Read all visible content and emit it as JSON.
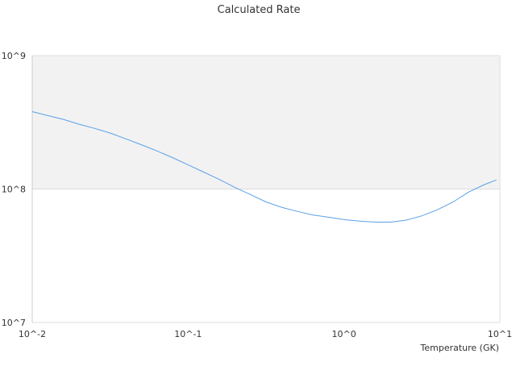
{
  "chart_data": {
    "type": "line",
    "title": "Calculated Rate",
    "xlabel": "Temperature (GK)",
    "ylabel": "",
    "x_scale": "log",
    "y_scale": "log",
    "xlim": [
      0.01,
      10
    ],
    "ylim": [
      10000000,
      1000000000
    ],
    "grid": true,
    "x_ticks": [
      {
        "value": 0.01,
        "label": "10^-2"
      },
      {
        "value": 0.1,
        "label": "10^-1"
      },
      {
        "value": 1,
        "label": "10^0"
      },
      {
        "value": 10,
        "label": "10^1"
      }
    ],
    "y_ticks": [
      {
        "value": 10000000,
        "label": "10^7"
      },
      {
        "value": 100000000,
        "label": "10^8"
      },
      {
        "value": 1000000000,
        "label": "10^9"
      }
    ],
    "shaded_band": {
      "y_from": 100000000,
      "y_to": 1000000000,
      "color": "#f2f2f2"
    },
    "series": [
      {
        "color": "#5aa0e6",
        "x": [
          0.01,
          0.0126,
          0.0158,
          0.02,
          0.0251,
          0.0316,
          0.0398,
          0.0501,
          0.0631,
          0.0794,
          0.1,
          0.1259,
          0.1585,
          0.1995,
          0.2512,
          0.3162,
          0.3981,
          0.5012,
          0.631,
          0.7943,
          1.0,
          1.259,
          1.585,
          1.995,
          2.512,
          3.162,
          3.981,
          5.012,
          6.31,
          7.943,
          9.5
        ],
        "y": [
          380000000,
          355000000,
          333000000,
          306000000,
          285000000,
          263000000,
          238000000,
          215000000,
          193000000,
          172000000,
          152000000,
          134000000,
          118000000,
          103000000,
          91000000,
          80000000,
          73000000,
          68000000,
          64000000,
          61500000,
          59000000,
          57500000,
          56500000,
          56500000,
          58500000,
          63000000,
          70000000,
          80000000,
          95000000,
          108000000,
          117000000
        ]
      }
    ]
  }
}
